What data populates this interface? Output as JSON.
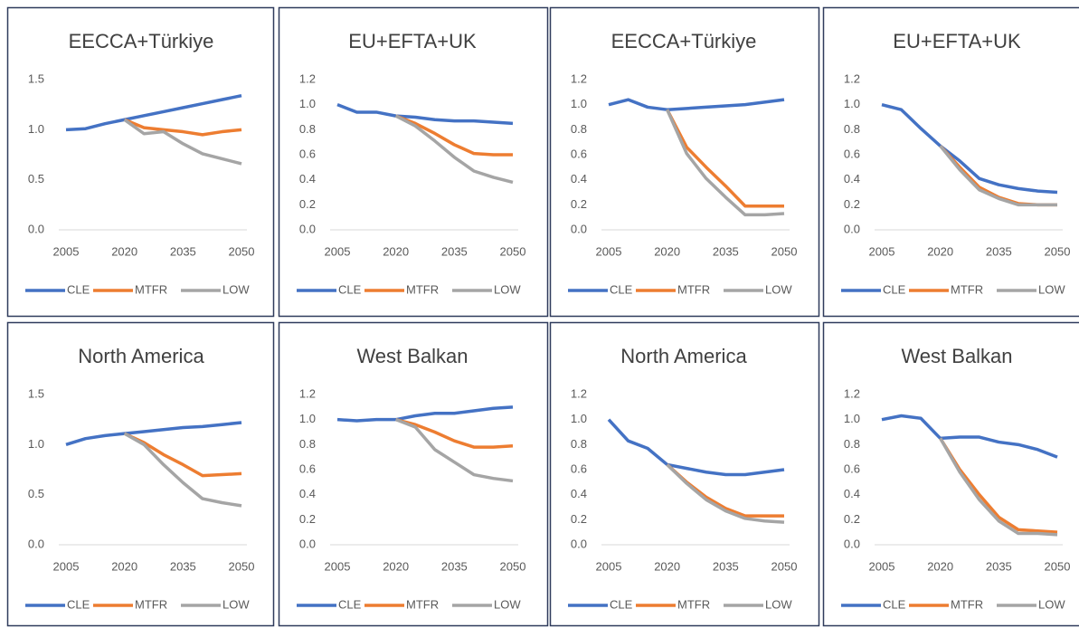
{
  "chart_data": [
    {
      "type": "line",
      "title": "EECCA+Türkiye",
      "x": [
        2005,
        2010,
        2015,
        2020,
        2025,
        2030,
        2035,
        2040,
        2045,
        2050
      ],
      "xlim": [
        2005,
        2050
      ],
      "xticks": [
        2005,
        2020,
        2035,
        2050
      ],
      "ylim": [
        0,
        1.5
      ],
      "yticks": [
        {
          "value": 0,
          "label": "0.0"
        },
        0.5,
        {
          "value": 1,
          "label": "1.0"
        },
        1.5
      ],
      "series": [
        {
          "name": "CLE",
          "color": "#4472c4",
          "values": [
            1.0,
            1.01,
            1.06,
            1.1,
            1.14,
            1.18,
            1.22,
            1.26,
            1.3,
            1.34
          ]
        },
        {
          "name": "MTFR",
          "color": "#ed7d31",
          "values": [
            null,
            null,
            null,
            1.1,
            1.02,
            1.0,
            0.98,
            0.95,
            0.98,
            1.0
          ]
        },
        {
          "name": "LOW",
          "color": "#a5a5a5",
          "values": [
            null,
            null,
            null,
            1.1,
            0.96,
            0.98,
            0.86,
            0.76,
            0.71,
            0.66
          ]
        }
      ]
    },
    {
      "type": "line",
      "title": "EU+EFTA+UK",
      "x": [
        2005,
        2010,
        2015,
        2020,
        2025,
        2030,
        2035,
        2040,
        2045,
        2050
      ],
      "xlim": [
        2005,
        2050
      ],
      "xticks": [
        2005,
        2020,
        2035,
        2050
      ],
      "ylim": [
        0,
        1.2
      ],
      "yticks": [
        {
          "value": 0,
          "label": "0.0"
        },
        0.2,
        0.4,
        0.6,
        0.8,
        {
          "value": 1,
          "label": "1.0"
        },
        1.2
      ],
      "series": [
        {
          "name": "CLE",
          "color": "#4472c4",
          "values": [
            1.0,
            0.94,
            0.94,
            0.91,
            0.9,
            0.88,
            0.87,
            0.87,
            0.86,
            0.85
          ]
        },
        {
          "name": "MTFR",
          "color": "#ed7d31",
          "values": [
            null,
            null,
            null,
            0.91,
            0.85,
            0.77,
            0.68,
            0.61,
            0.6,
            0.6
          ]
        },
        {
          "name": "LOW",
          "color": "#a5a5a5",
          "values": [
            null,
            null,
            null,
            0.91,
            0.83,
            0.71,
            0.58,
            0.47,
            0.42,
            0.38
          ]
        }
      ]
    },
    {
      "type": "line",
      "title": "EECCA+Türkiye",
      "x": [
        2005,
        2010,
        2015,
        2020,
        2025,
        2030,
        2035,
        2040,
        2045,
        2050
      ],
      "xlim": [
        2005,
        2050
      ],
      "xticks": [
        2005,
        2020,
        2035,
        2050
      ],
      "ylim": [
        0,
        1.2
      ],
      "yticks": [
        {
          "value": 0,
          "label": "0.0"
        },
        0.2,
        0.4,
        0.6,
        0.8,
        {
          "value": 1,
          "label": "1.0"
        },
        1.2
      ],
      "series": [
        {
          "name": "CLE",
          "color": "#4472c4",
          "values": [
            1.0,
            1.04,
            0.98,
            0.96,
            0.97,
            0.98,
            0.99,
            1.0,
            1.02,
            1.04
          ]
        },
        {
          "name": "MTFR",
          "color": "#ed7d31",
          "values": [
            null,
            null,
            null,
            0.96,
            0.66,
            0.5,
            0.35,
            0.19,
            0.19,
            0.19
          ]
        },
        {
          "name": "LOW",
          "color": "#a5a5a5",
          "values": [
            null,
            null,
            null,
            0.96,
            0.61,
            0.41,
            0.26,
            0.12,
            0.12,
            0.13
          ]
        }
      ]
    },
    {
      "type": "line",
      "title": "EU+EFTA+UK",
      "x": [
        2005,
        2010,
        2015,
        2020,
        2025,
        2030,
        2035,
        2040,
        2045,
        2050
      ],
      "xlim": [
        2005,
        2050
      ],
      "xticks": [
        2005,
        2020,
        2035,
        2050
      ],
      "ylim": [
        0,
        1.2
      ],
      "yticks": [
        {
          "value": 0,
          "label": "0.0"
        },
        0.2,
        0.4,
        0.6,
        0.8,
        {
          "value": 1,
          "label": "1.0"
        },
        1.2
      ],
      "series": [
        {
          "name": "CLE",
          "color": "#4472c4",
          "values": [
            1.0,
            0.96,
            0.81,
            0.67,
            0.55,
            0.41,
            0.36,
            0.33,
            0.31,
            0.3
          ]
        },
        {
          "name": "MTFR",
          "color": "#ed7d31",
          "values": [
            null,
            null,
            null,
            0.67,
            0.5,
            0.34,
            0.26,
            0.21,
            0.2,
            0.2
          ]
        },
        {
          "name": "LOW",
          "color": "#a5a5a5",
          "values": [
            null,
            null,
            null,
            0.67,
            0.48,
            0.32,
            0.25,
            0.2,
            0.2,
            0.2
          ]
        }
      ]
    },
    {
      "type": "line",
      "title": "North America",
      "x": [
        2005,
        2010,
        2015,
        2020,
        2025,
        2030,
        2035,
        2040,
        2045,
        2050
      ],
      "xlim": [
        2005,
        2050
      ],
      "xticks": [
        2005,
        2020,
        2035,
        2050
      ],
      "ylim": [
        0,
        1.5
      ],
      "yticks": [
        {
          "value": 0,
          "label": "0.0"
        },
        0.5,
        {
          "value": 1,
          "label": "1.0"
        },
        1.5
      ],
      "series": [
        {
          "name": "CLE",
          "color": "#4472c4",
          "values": [
            1.0,
            1.06,
            1.09,
            1.11,
            1.13,
            1.15,
            1.17,
            1.18,
            1.2,
            1.22
          ]
        },
        {
          "name": "MTFR",
          "color": "#ed7d31",
          "values": [
            null,
            null,
            null,
            1.11,
            1.02,
            0.9,
            0.8,
            0.69,
            0.7,
            0.71
          ]
        },
        {
          "name": "LOW",
          "color": "#a5a5a5",
          "values": [
            null,
            null,
            null,
            1.11,
            1.0,
            0.8,
            0.62,
            0.46,
            0.42,
            0.39
          ]
        }
      ]
    },
    {
      "type": "line",
      "title": "West Balkan",
      "x": [
        2005,
        2010,
        2015,
        2020,
        2025,
        2030,
        2035,
        2040,
        2045,
        2050
      ],
      "xlim": [
        2005,
        2050
      ],
      "xticks": [
        2005,
        2020,
        2035,
        2050
      ],
      "ylim": [
        0,
        1.2
      ],
      "yticks": [
        {
          "value": 0,
          "label": "0.0"
        },
        0.2,
        0.4,
        0.6,
        0.8,
        {
          "value": 1,
          "label": "1.0"
        },
        1.2
      ],
      "series": [
        {
          "name": "CLE",
          "color": "#4472c4",
          "values": [
            1.0,
            0.99,
            1.0,
            1.0,
            1.03,
            1.05,
            1.05,
            1.07,
            1.09,
            1.1
          ]
        },
        {
          "name": "MTFR",
          "color": "#ed7d31",
          "values": [
            null,
            null,
            null,
            1.0,
            0.96,
            0.9,
            0.83,
            0.78,
            0.78,
            0.79
          ]
        },
        {
          "name": "LOW",
          "color": "#a5a5a5",
          "values": [
            null,
            null,
            null,
            1.0,
            0.94,
            0.76,
            0.66,
            0.56,
            0.53,
            0.51
          ]
        }
      ]
    },
    {
      "type": "line",
      "title": "North America",
      "x": [
        2005,
        2010,
        2015,
        2020,
        2025,
        2030,
        2035,
        2040,
        2045,
        2050
      ],
      "xlim": [
        2005,
        2050
      ],
      "xticks": [
        2005,
        2020,
        2035,
        2050
      ],
      "ylim": [
        0,
        1.2
      ],
      "yticks": [
        {
          "value": 0,
          "label": "0.0"
        },
        0.2,
        0.4,
        0.6,
        0.8,
        {
          "value": 1,
          "label": "1.0"
        },
        1.2
      ],
      "series": [
        {
          "name": "CLE",
          "color": "#4472c4",
          "values": [
            1.0,
            0.83,
            0.77,
            0.64,
            0.61,
            0.58,
            0.56,
            0.56,
            0.58,
            0.6
          ]
        },
        {
          "name": "MTFR",
          "color": "#ed7d31",
          "values": [
            null,
            null,
            null,
            0.64,
            0.5,
            0.38,
            0.29,
            0.23,
            0.23,
            0.23
          ]
        },
        {
          "name": "LOW",
          "color": "#a5a5a5",
          "values": [
            null,
            null,
            null,
            0.64,
            0.49,
            0.36,
            0.27,
            0.21,
            0.19,
            0.18
          ]
        }
      ]
    },
    {
      "type": "line",
      "title": "West Balkan",
      "x": [
        2005,
        2010,
        2015,
        2020,
        2025,
        2030,
        2035,
        2040,
        2045,
        2050
      ],
      "xlim": [
        2005,
        2050
      ],
      "xticks": [
        2005,
        2020,
        2035,
        2050
      ],
      "ylim": [
        0,
        1.2
      ],
      "yticks": [
        {
          "value": 0,
          "label": "0.0"
        },
        0.2,
        0.4,
        0.6,
        0.8,
        {
          "value": 1,
          "label": "1.0"
        },
        1.2
      ],
      "series": [
        {
          "name": "CLE",
          "color": "#4472c4",
          "values": [
            1.0,
            1.03,
            1.01,
            0.85,
            0.86,
            0.86,
            0.82,
            0.8,
            0.76,
            0.7
          ]
        },
        {
          "name": "MTFR",
          "color": "#ed7d31",
          "values": [
            null,
            null,
            null,
            0.85,
            0.6,
            0.4,
            0.22,
            0.12,
            0.11,
            0.1
          ]
        },
        {
          "name": "LOW",
          "color": "#a5a5a5",
          "values": [
            null,
            null,
            null,
            0.85,
            0.58,
            0.36,
            0.19,
            0.09,
            0.09,
            0.08
          ]
        }
      ]
    }
  ]
}
